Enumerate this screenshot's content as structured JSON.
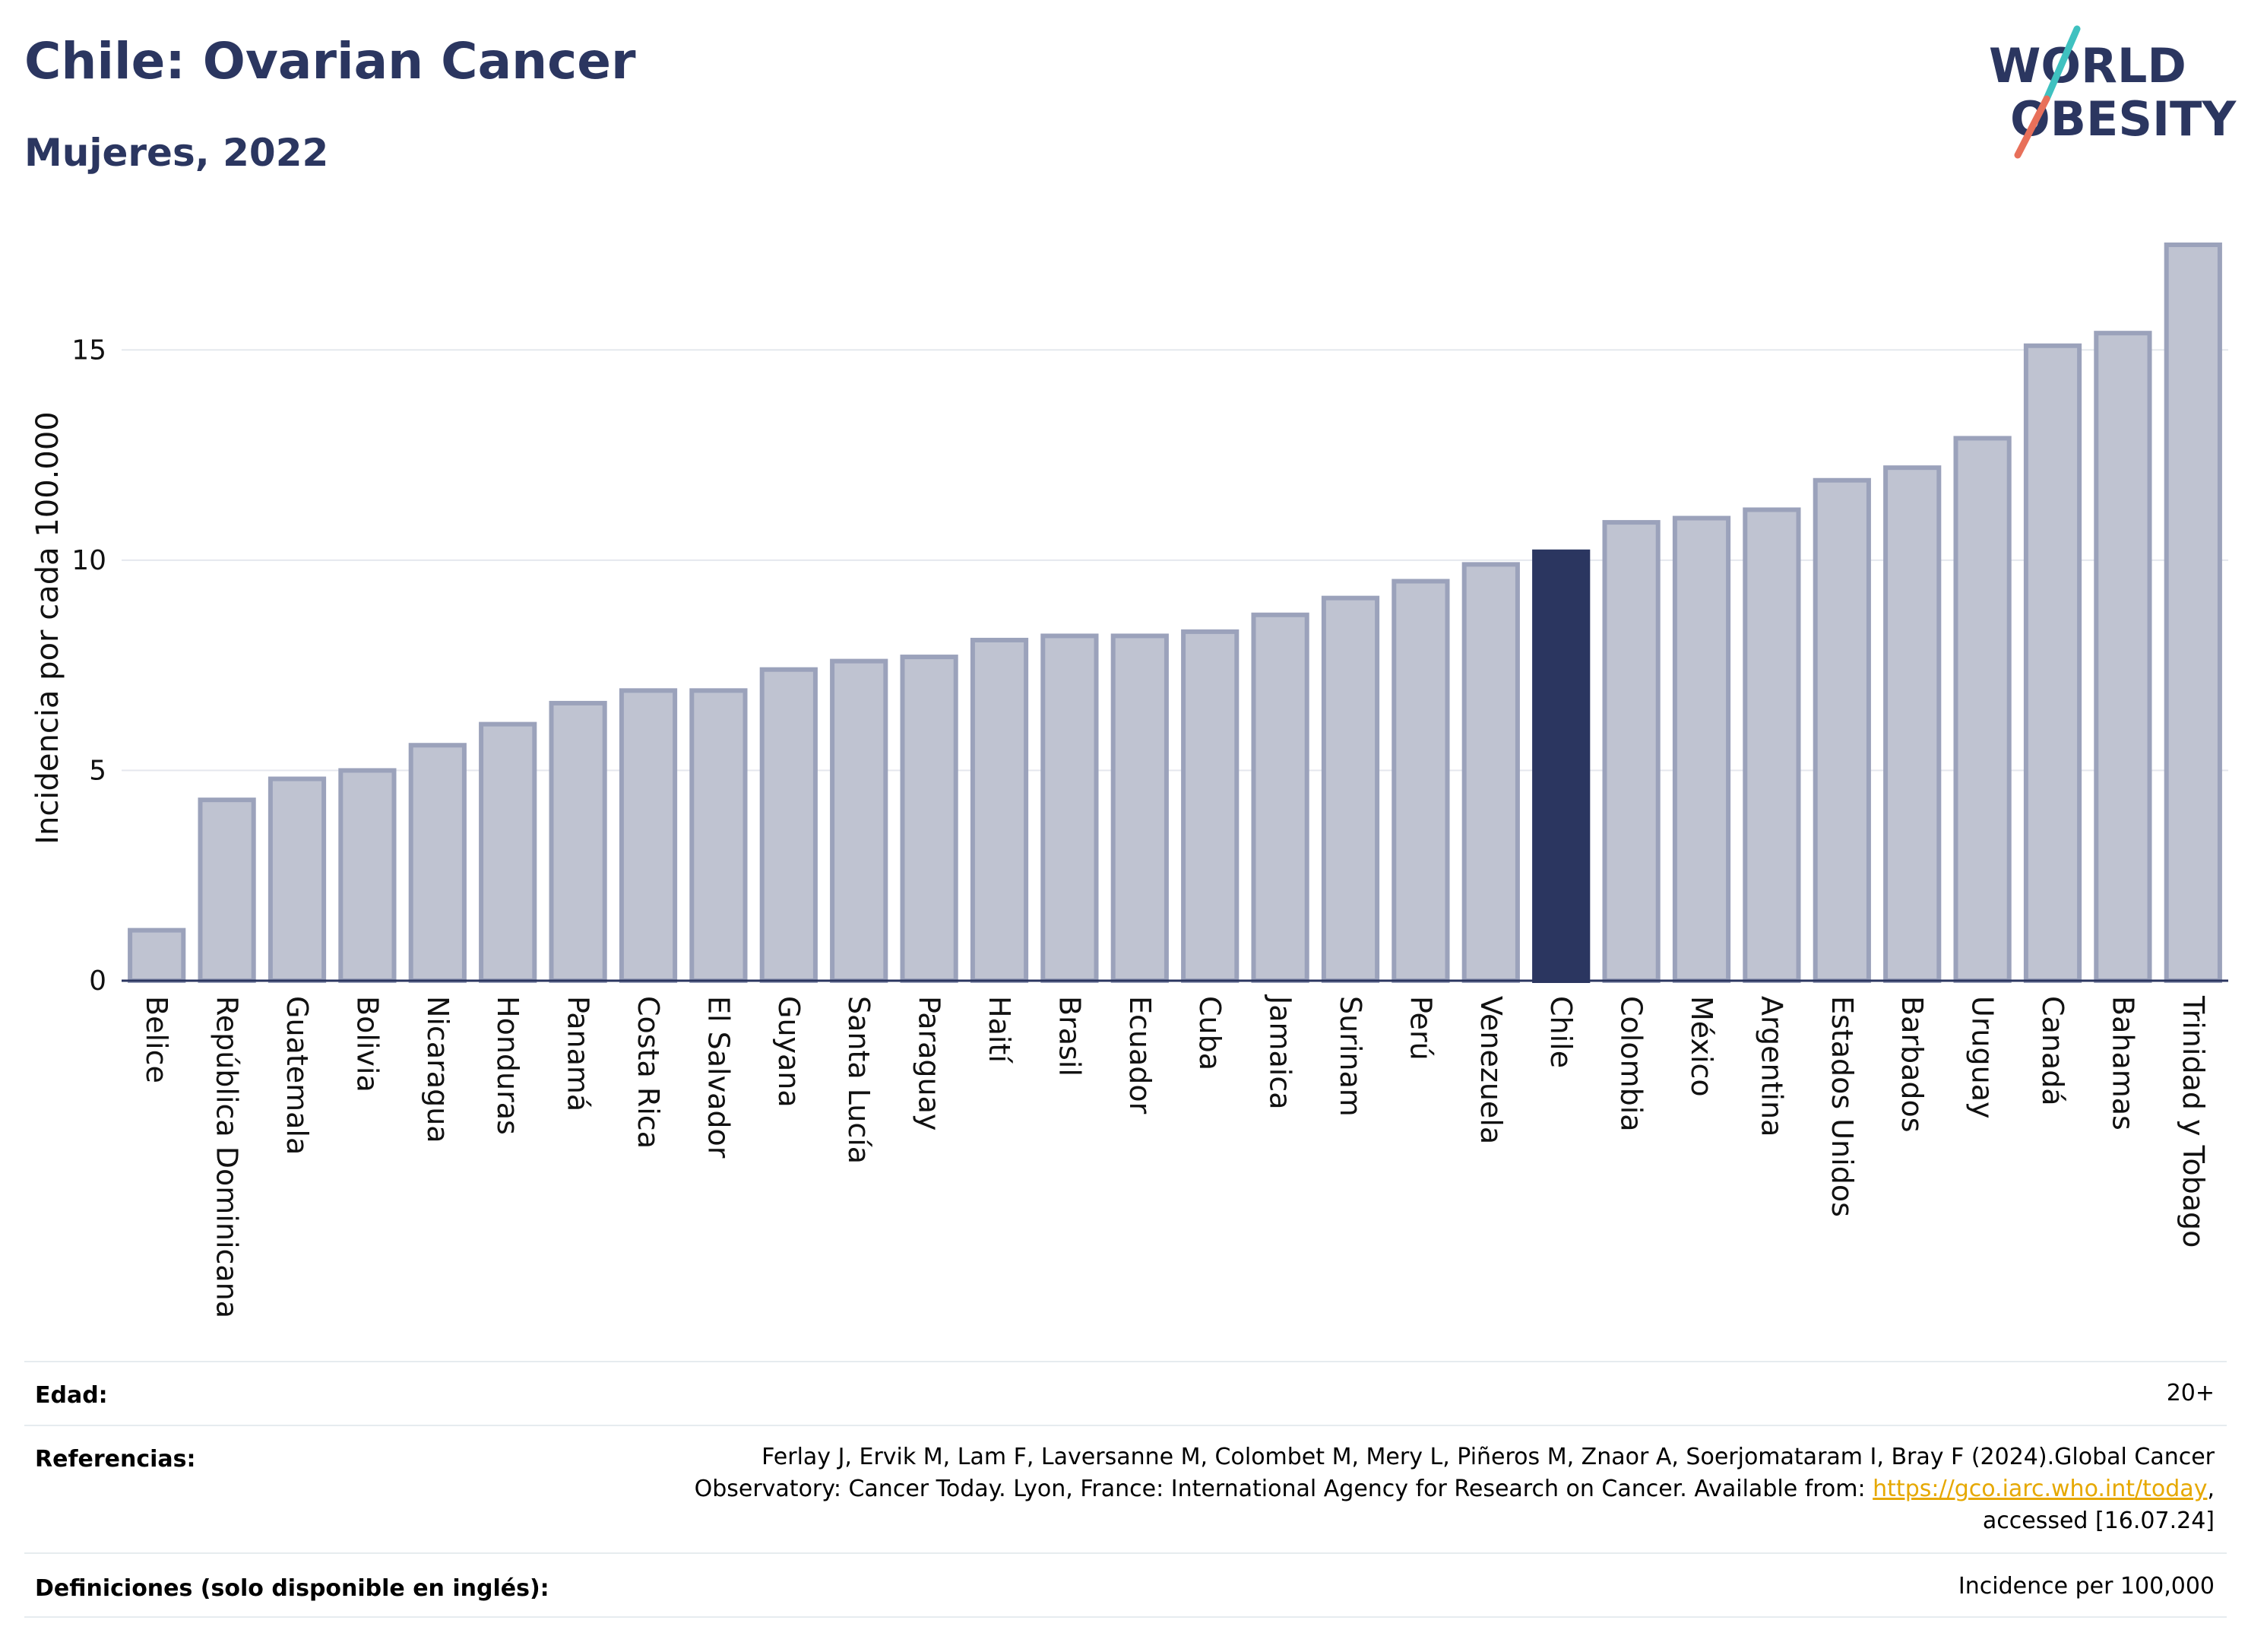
{
  "header": {
    "title": "Chile: Ovarian Cancer",
    "subtitle": "Mujeres, 2022",
    "logo_line1": "WORLD",
    "logo_line2": "OBESITY"
  },
  "colors": {
    "bar_fill": "#bfc3d1",
    "bar_stroke": "#9ba2bb",
    "highlight": "#2b3660",
    "grid": "#e5e8ee",
    "link": "#e6a800",
    "logo_teal": "#3fc1c0",
    "logo_coral": "#e8705a"
  },
  "chart_data": {
    "type": "bar",
    "title": "",
    "xlabel": "",
    "ylabel": "Incidencia por cada 100.000",
    "ylim": [
      0,
      17.5
    ],
    "yticks": [
      0,
      5,
      10,
      15
    ],
    "grid": true,
    "highlight": "Chile",
    "categories": [
      "Belice",
      "República Dominicana",
      "Guatemala",
      "Bolivia",
      "Nicaragua",
      "Honduras",
      "Panamá",
      "Costa Rica",
      "El Salvador",
      "Guyana",
      "Santa Lucía",
      "Paraguay",
      "Haití",
      "Brasil",
      "Ecuador",
      "Cuba",
      "Jamaica",
      "Surinam",
      "Perú",
      "Venezuela",
      "Chile",
      "Colombia",
      "México",
      "Argentina",
      "Estados Unidos",
      "Barbados",
      "Uruguay",
      "Canadá",
      "Bahamas",
      "Trinidad y Tobago"
    ],
    "values": [
      1.2,
      4.3,
      4.8,
      5.0,
      5.6,
      6.1,
      6.6,
      6.9,
      6.9,
      7.4,
      7.6,
      7.7,
      8.1,
      8.2,
      8.2,
      8.3,
      8.7,
      9.1,
      9.5,
      9.9,
      10.2,
      10.9,
      11.0,
      11.2,
      11.9,
      12.2,
      12.9,
      15.1,
      15.4,
      17.5
    ]
  },
  "footer": {
    "age_label": "Edad:",
    "age_value": "20+",
    "ref_label": "Referencias:",
    "ref_line1": "Ferlay J, Ervik M, Lam F, Laversanne M, Colombet M, Mery L, Piñeros M, Znaor A, Soerjomataram I, Bray F (2024).Global Cancer",
    "ref_line2_pre": "Observatory: Cancer Today. Lyon, France: International Agency for Research on Cancer. Available from: ",
    "ref_link": "https://gco.iarc.who.int/today",
    "ref_line2_post": ",",
    "ref_line3": "accessed [16.07.24]",
    "def_label": "Definiciones (solo disponible en inglés):",
    "def_value": "Incidence per 100,000"
  }
}
